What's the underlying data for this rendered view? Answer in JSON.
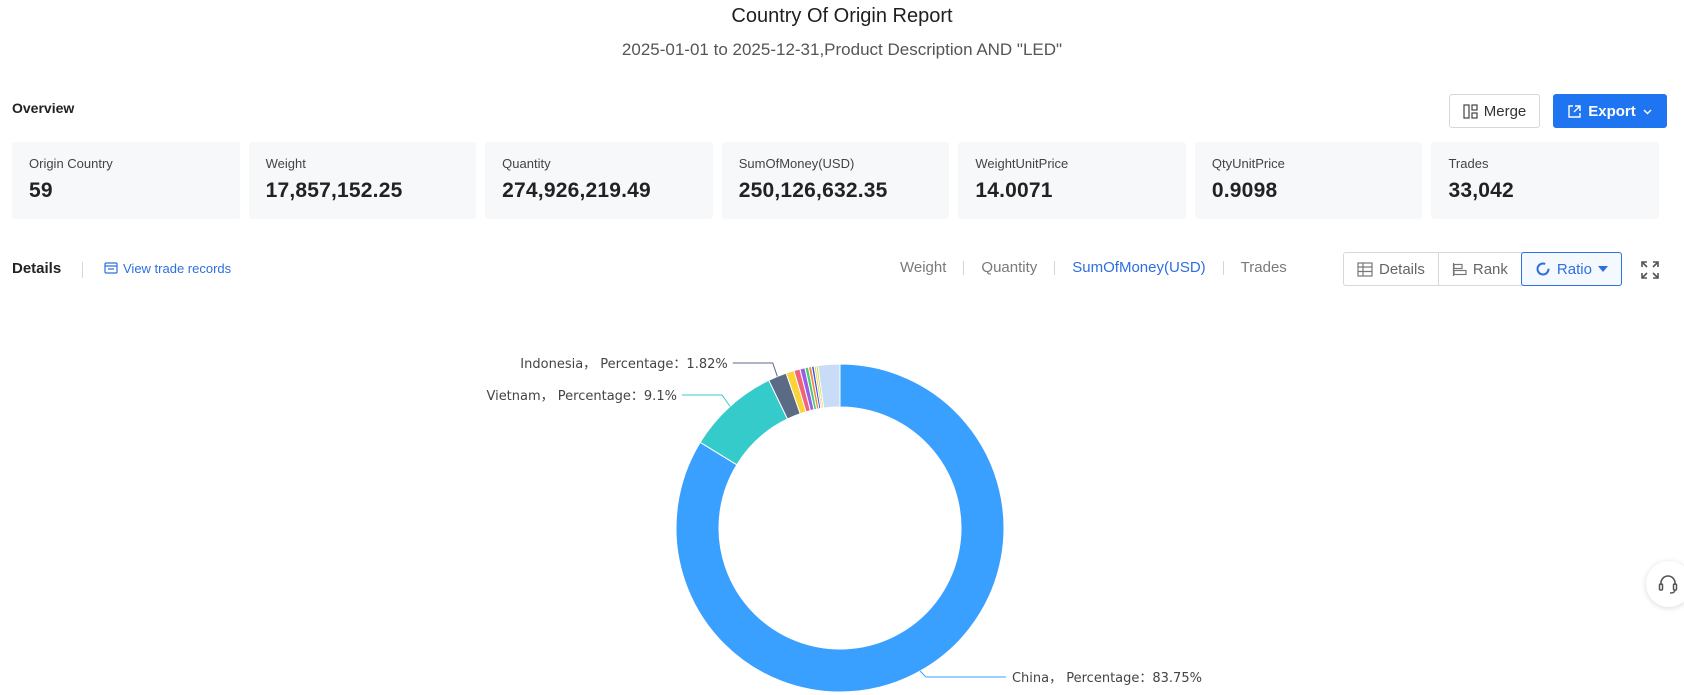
{
  "header": {
    "title": "Country Of Origin Report",
    "subtitle": "2025-01-01 to 2025-12-31,Product Description AND \"LED\""
  },
  "overview": {
    "label": "Overview",
    "merge_label": "Merge",
    "export_label": "Export",
    "stats": [
      {
        "label": "Origin Country",
        "value": "59"
      },
      {
        "label": "Weight",
        "value": "17,857,152.25"
      },
      {
        "label": "Quantity",
        "value": "274,926,219.49"
      },
      {
        "label": "SumOfMoney(USD)",
        "value": "250,126,632.35"
      },
      {
        "label": "WeightUnitPrice",
        "value": "14.0071"
      },
      {
        "label": "QtyUnitPrice",
        "value": "0.9098"
      },
      {
        "label": "Trades",
        "value": "33,042"
      }
    ]
  },
  "details": {
    "label": "Details",
    "view_records_label": "View trade records",
    "metric_tabs": [
      "Weight",
      "Quantity",
      "SumOfMoney(USD)",
      "Trades"
    ],
    "active_metric": "SumOfMoney(USD)",
    "views": [
      "Details",
      "Rank",
      "Ratio"
    ],
    "active_view": "Ratio"
  },
  "chart_data": {
    "type": "pie",
    "donut": true,
    "slices": [
      {
        "name": "China",
        "percentage": 83.75,
        "color": "#3aa0ff",
        "label": "China， Percentage：83.75%"
      },
      {
        "name": "Vietnam",
        "percentage": 9.1,
        "color": "#36cbcb",
        "label": "Vietnam， Percentage：9.1%"
      },
      {
        "name": "Indonesia",
        "percentage": 1.82,
        "color": "#5b6a85",
        "label": "Indonesia， Percentage：1.82%"
      },
      {
        "name": "",
        "percentage": 0.8,
        "color": "#fad337"
      },
      {
        "name": "",
        "percentage": 0.6,
        "color": "#f2637b"
      },
      {
        "name": "",
        "percentage": 0.5,
        "color": "#975fe4"
      },
      {
        "name": "",
        "percentage": 0.35,
        "color": "#4dcb73"
      },
      {
        "name": "",
        "percentage": 0.3,
        "color": "#f08a3e"
      },
      {
        "name": "",
        "percentage": 0.25,
        "color": "#2f54eb"
      },
      {
        "name": "",
        "percentage": 0.2,
        "color": "#ffc53d"
      },
      {
        "name": "",
        "percentage": 0.18,
        "color": "#a0d911"
      },
      {
        "name": "",
        "percentage": 2.15,
        "color": "#c8dcf8"
      }
    ]
  },
  "colors": {
    "primary": "#1f74f1",
    "link": "#2e6fe0"
  }
}
